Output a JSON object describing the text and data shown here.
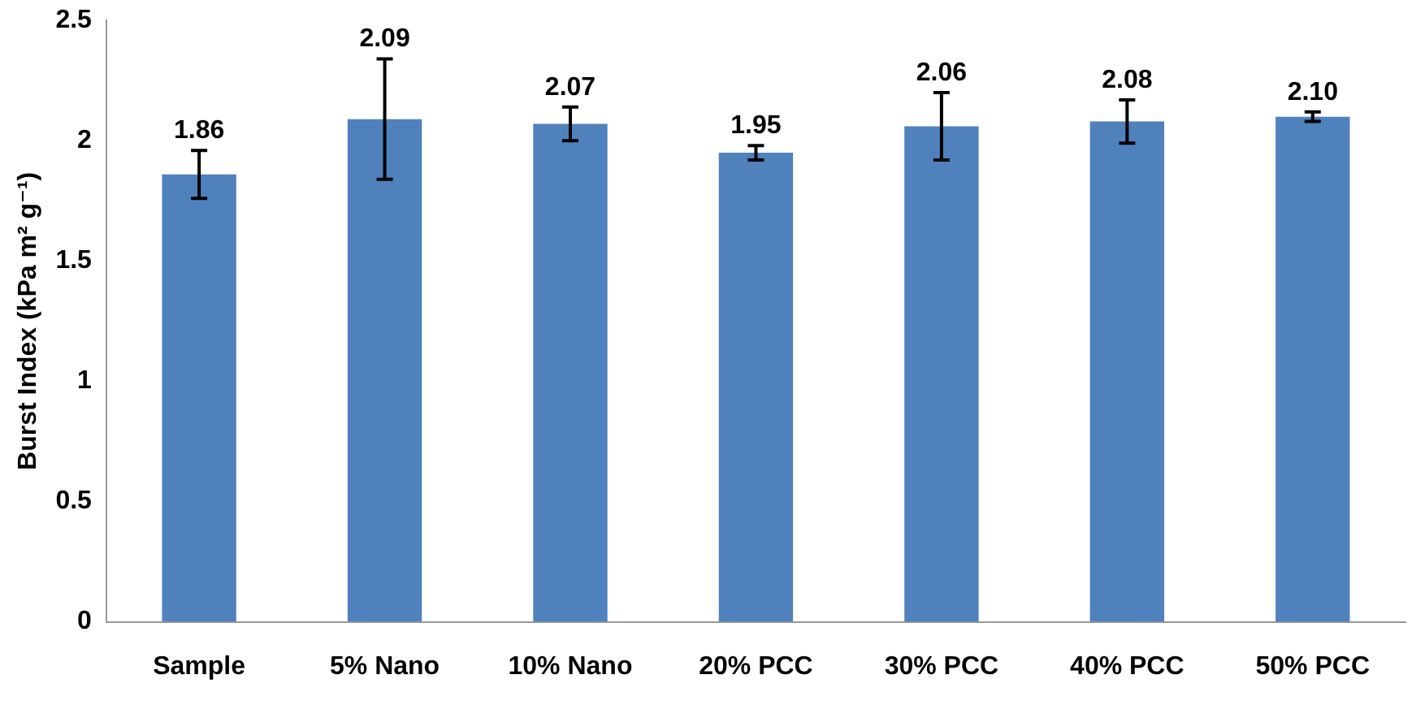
{
  "chart_data": {
    "type": "bar",
    "ylabel": "Burst Index (kPa m² g⁻¹)",
    "categories": [
      "Sample",
      "5% Nano",
      "10% Nano",
      "20% PCC",
      "30% PCC",
      "40% PCC",
      "50% PCC"
    ],
    "values": [
      1.86,
      2.09,
      2.07,
      1.95,
      2.06,
      2.08,
      2.1
    ],
    "errors": [
      0.1,
      0.25,
      0.07,
      0.03,
      0.14,
      0.09,
      0.02
    ],
    "value_labels": [
      "1.86",
      "2.09",
      "2.07",
      "1.95",
      "2.06",
      "2.08",
      "2.10"
    ],
    "color": "#4f81bd",
    "ylim": [
      0,
      2.5
    ],
    "yticks": [
      0,
      0.5,
      1,
      1.5,
      2,
      2.5
    ],
    "grid": false,
    "legend": false
  }
}
